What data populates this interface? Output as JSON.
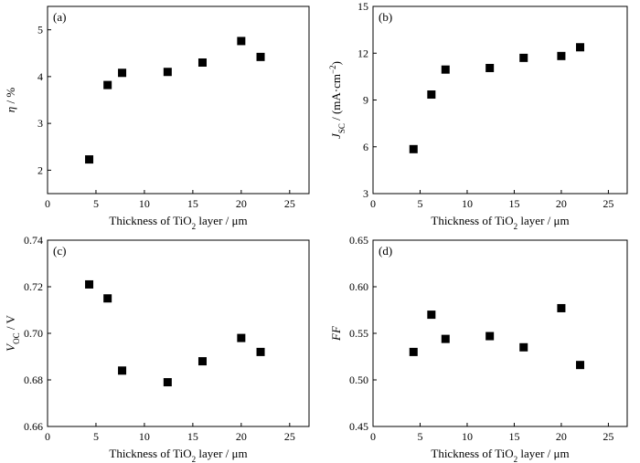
{
  "chart_data": [
    {
      "type": "scatter",
      "panel_label": "(a)",
      "xlabel": {
        "main": "Thickness of TiO",
        "sub": "2",
        "tail": " layer / μm"
      },
      "ylabel": {
        "main": "η",
        "tail": " / %"
      },
      "xlim": [
        0,
        27
      ],
      "ylim": [
        1.5,
        5.5
      ],
      "xticks": [
        0,
        5,
        10,
        15,
        20,
        25
      ],
      "yticks": [
        2,
        3,
        4,
        5
      ],
      "x": [
        4.3,
        6.2,
        7.7,
        12.4,
        16.0,
        20.0,
        22.0
      ],
      "y": [
        2.23,
        3.82,
        4.08,
        4.1,
        4.3,
        4.76,
        4.42
      ]
    },
    {
      "type": "scatter",
      "panel_label": "(b)",
      "xlabel": {
        "main": "Thickness of TiO",
        "sub": "2",
        "tail": " layer / μm"
      },
      "ylabel": {
        "main": "J",
        "sub": "SC",
        "tail": " / (mA·cm",
        "sup": "−2",
        "close": ")"
      },
      "xlim": [
        0,
        27
      ],
      "ylim": [
        3,
        15
      ],
      "xticks": [
        0,
        5,
        10,
        15,
        20,
        25
      ],
      "yticks": [
        3,
        6,
        9,
        12,
        15
      ],
      "x": [
        4.3,
        6.2,
        7.7,
        12.4,
        16.0,
        20.0,
        22.0
      ],
      "y": [
        5.85,
        9.35,
        10.95,
        11.05,
        11.7,
        11.82,
        12.38
      ]
    },
    {
      "type": "scatter",
      "panel_label": "(c)",
      "xlabel": {
        "main": "Thickness of TiO",
        "sub": "2",
        "tail": " layer / μm"
      },
      "ylabel": {
        "main": "V",
        "sub": "OC",
        "tail": " / V"
      },
      "xlim": [
        0,
        27
      ],
      "ylim": [
        0.66,
        0.74
      ],
      "xticks": [
        0,
        5,
        10,
        15,
        20,
        25
      ],
      "yticks": [
        "0.66",
        "0.68",
        "0.70",
        "0.72",
        "0.74"
      ],
      "x": [
        4.3,
        6.2,
        7.7,
        12.4,
        16.0,
        20.0,
        22.0
      ],
      "y": [
        0.721,
        0.715,
        0.684,
        0.679,
        0.688,
        0.698,
        0.692
      ]
    },
    {
      "type": "scatter",
      "panel_label": "(d)",
      "xlabel": {
        "main": "Thickness of TiO",
        "sub": "2",
        "tail": " layer / μm"
      },
      "ylabel": {
        "main": "FF",
        "tail": ""
      },
      "xlim": [
        0,
        27
      ],
      "ylim": [
        0.45,
        0.65
      ],
      "xticks": [
        0,
        5,
        10,
        15,
        20,
        25
      ],
      "yticks": [
        "0.45",
        "0.50",
        "0.55",
        "0.60",
        "0.65"
      ],
      "x": [
        4.3,
        6.2,
        7.7,
        12.4,
        16.0,
        20.0,
        22.0
      ],
      "y": [
        0.53,
        0.57,
        0.544,
        0.547,
        0.535,
        0.577,
        0.516
      ]
    }
  ]
}
